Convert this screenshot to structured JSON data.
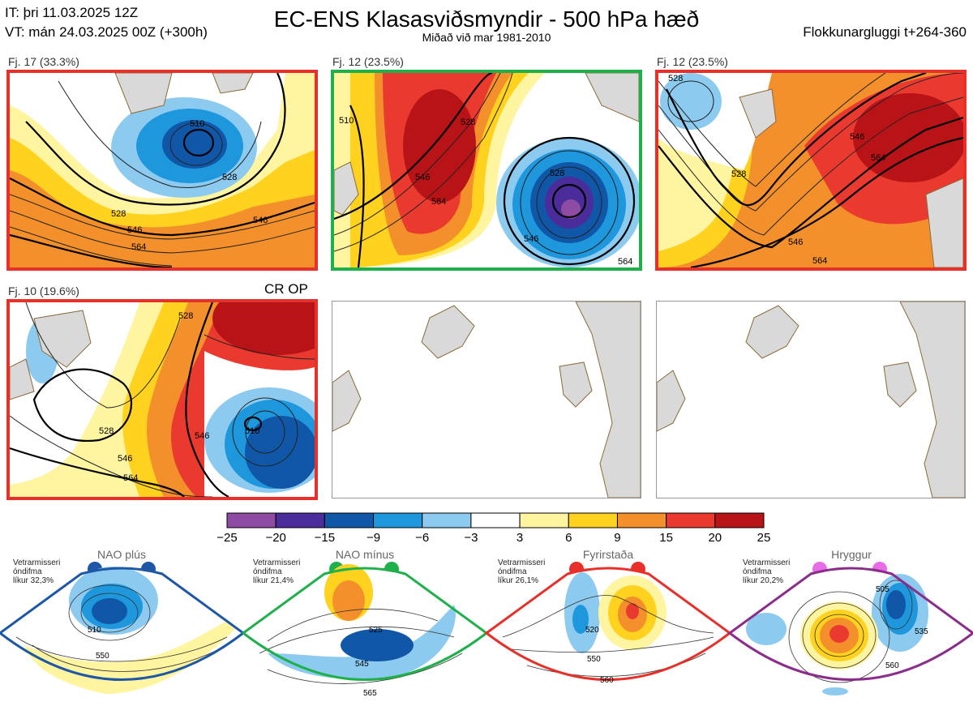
{
  "header": {
    "it": "IT: þri 11.03.2025 12Z",
    "vt": "VT: mán 24.03.2025 00Z  (+300h)",
    "title": "EC-ENS Klasasviðsmyndir - 500 hPa hæð",
    "subtitle": "Miðað við mar 1981-2010",
    "window": "Flokkunargluggi t+264-360"
  },
  "colors": {
    "red_frame": "#e8302a",
    "green_frame": "#20b04b",
    "blue_frame": "#1d57a5",
    "purple_frame": "#8b2d8b",
    "land": "#d9d9d9",
    "coast": "#8a6a3a"
  },
  "panels": [
    {
      "label": "Fj. 17 (33.3%)",
      "frame": "red",
      "contours": [
        "528",
        "546",
        "564",
        "510",
        "528",
        "546"
      ]
    },
    {
      "label": "Fj. 12 (23.5%)",
      "frame": "green",
      "contours": [
        "510",
        "528",
        "546",
        "564",
        "528",
        "546",
        "564"
      ]
    },
    {
      "label": "Fj. 12 (23.5%)",
      "frame": "red",
      "contours": [
        "528",
        "546",
        "564",
        "528",
        "546",
        "564"
      ]
    },
    {
      "label": "Fj. 10 (19.6%)",
      "frame": "red",
      "contours": [
        "528",
        "546",
        "564",
        "546",
        "528",
        "510"
      ],
      "tag": "CR OP"
    }
  ],
  "chart_data": {
    "type": "heatmap",
    "title": "EC-ENS Klasasviðsmyndir - 500 hPa hæð",
    "colorbar": {
      "ticks": [
        "−25",
        "−20",
        "−15",
        "−9",
        "−6",
        "−3",
        "3",
        "6",
        "9",
        "15",
        "20",
        "25"
      ],
      "colors": [
        "#8e4ba3",
        "#4a2d9a",
        "#1157a8",
        "#1f97dc",
        "#8ccbef",
        "#ffffff",
        "#fff4a0",
        "#ffd21f",
        "#f4902c",
        "#ea3a30",
        "#b81317"
      ]
    },
    "regimes": [
      {
        "name": "NAO plús",
        "note": [
          "Vetrarmisseri",
          "óndifma",
          "líkur 32,3%"
        ],
        "dot_color": "#1d57a5",
        "frame": "blue",
        "contours": [
          "510",
          "550"
        ]
      },
      {
        "name": "NAO mínus",
        "note": [
          "Vetrarmisseri",
          "óndifma",
          "líkur 21,4%"
        ],
        "dot_color": "#20b04b",
        "frame": "green",
        "contours": [
          "525",
          "545",
          "565"
        ]
      },
      {
        "name": "Fyrirstaða",
        "note": [
          "Vetrarmisseri",
          "óndifma",
          "líkur 26,1%"
        ],
        "dot_color": "#e8302a",
        "frame": "red",
        "contours": [
          "520",
          "550",
          "560"
        ]
      },
      {
        "name": "Hryggur",
        "note": [
          "Vetrarmisseri",
          "óndifma",
          "líkur 20,2%"
        ],
        "dot_color": "#e86be8",
        "frame": "purple",
        "contours": [
          "505",
          "535",
          "560"
        ]
      }
    ]
  }
}
